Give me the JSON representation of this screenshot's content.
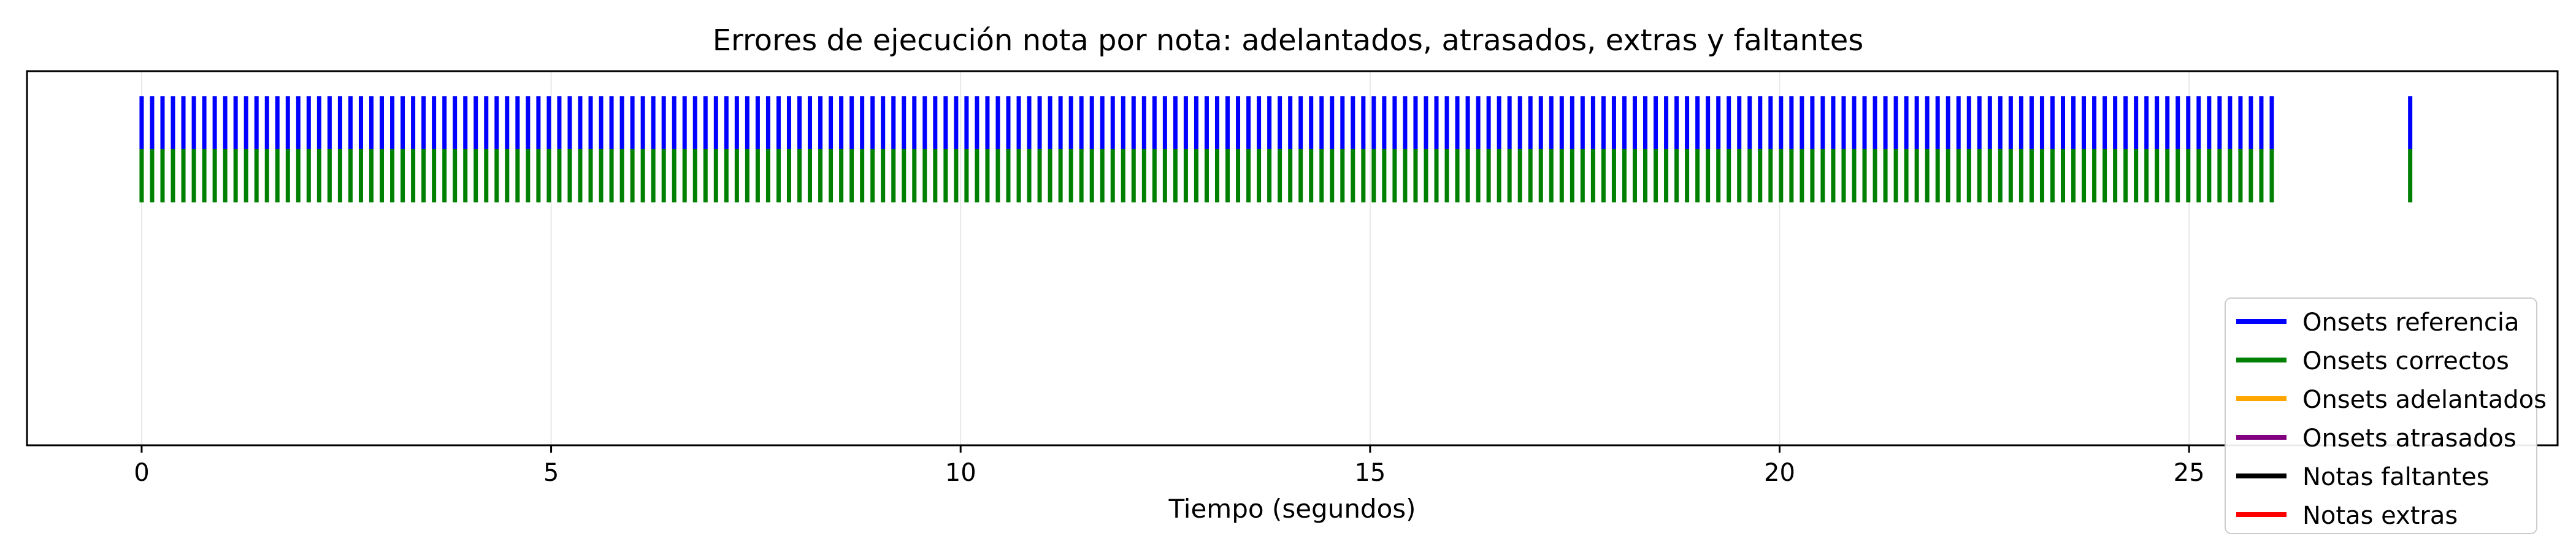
{
  "chart_data": {
    "type": "event_plot",
    "title": "Errores de ejecución nota por nota: adelantados, atrasados, extras y faltantes",
    "xlabel": "Tiempo (segundos)",
    "ylabel": "",
    "xlim": [
      -1.4,
      29.5
    ],
    "xticks": [
      0,
      5,
      10,
      15,
      20,
      25
    ],
    "grid": "vertical",
    "legend_position": "lower right",
    "onset_regular": {
      "start": 0.0,
      "end": 26.08,
      "step": 0.1275
    },
    "final_onset": 27.7,
    "series": [
      {
        "name": "Onsets referencia",
        "color": "#0000ff",
        "lane": "upper"
      },
      {
        "name": "Onsets correctos",
        "color": "#008000",
        "lane": "middle"
      },
      {
        "name": "Onsets adelantados",
        "color": "#ffa500",
        "lane": "none"
      },
      {
        "name": "Onsets atrasados",
        "color": "#800080",
        "lane": "none"
      },
      {
        "name": "Notas faltantes",
        "color": "#000000",
        "lane": "none"
      },
      {
        "name": "Notas extras",
        "color": "#ff0000",
        "lane": "none"
      }
    ]
  }
}
